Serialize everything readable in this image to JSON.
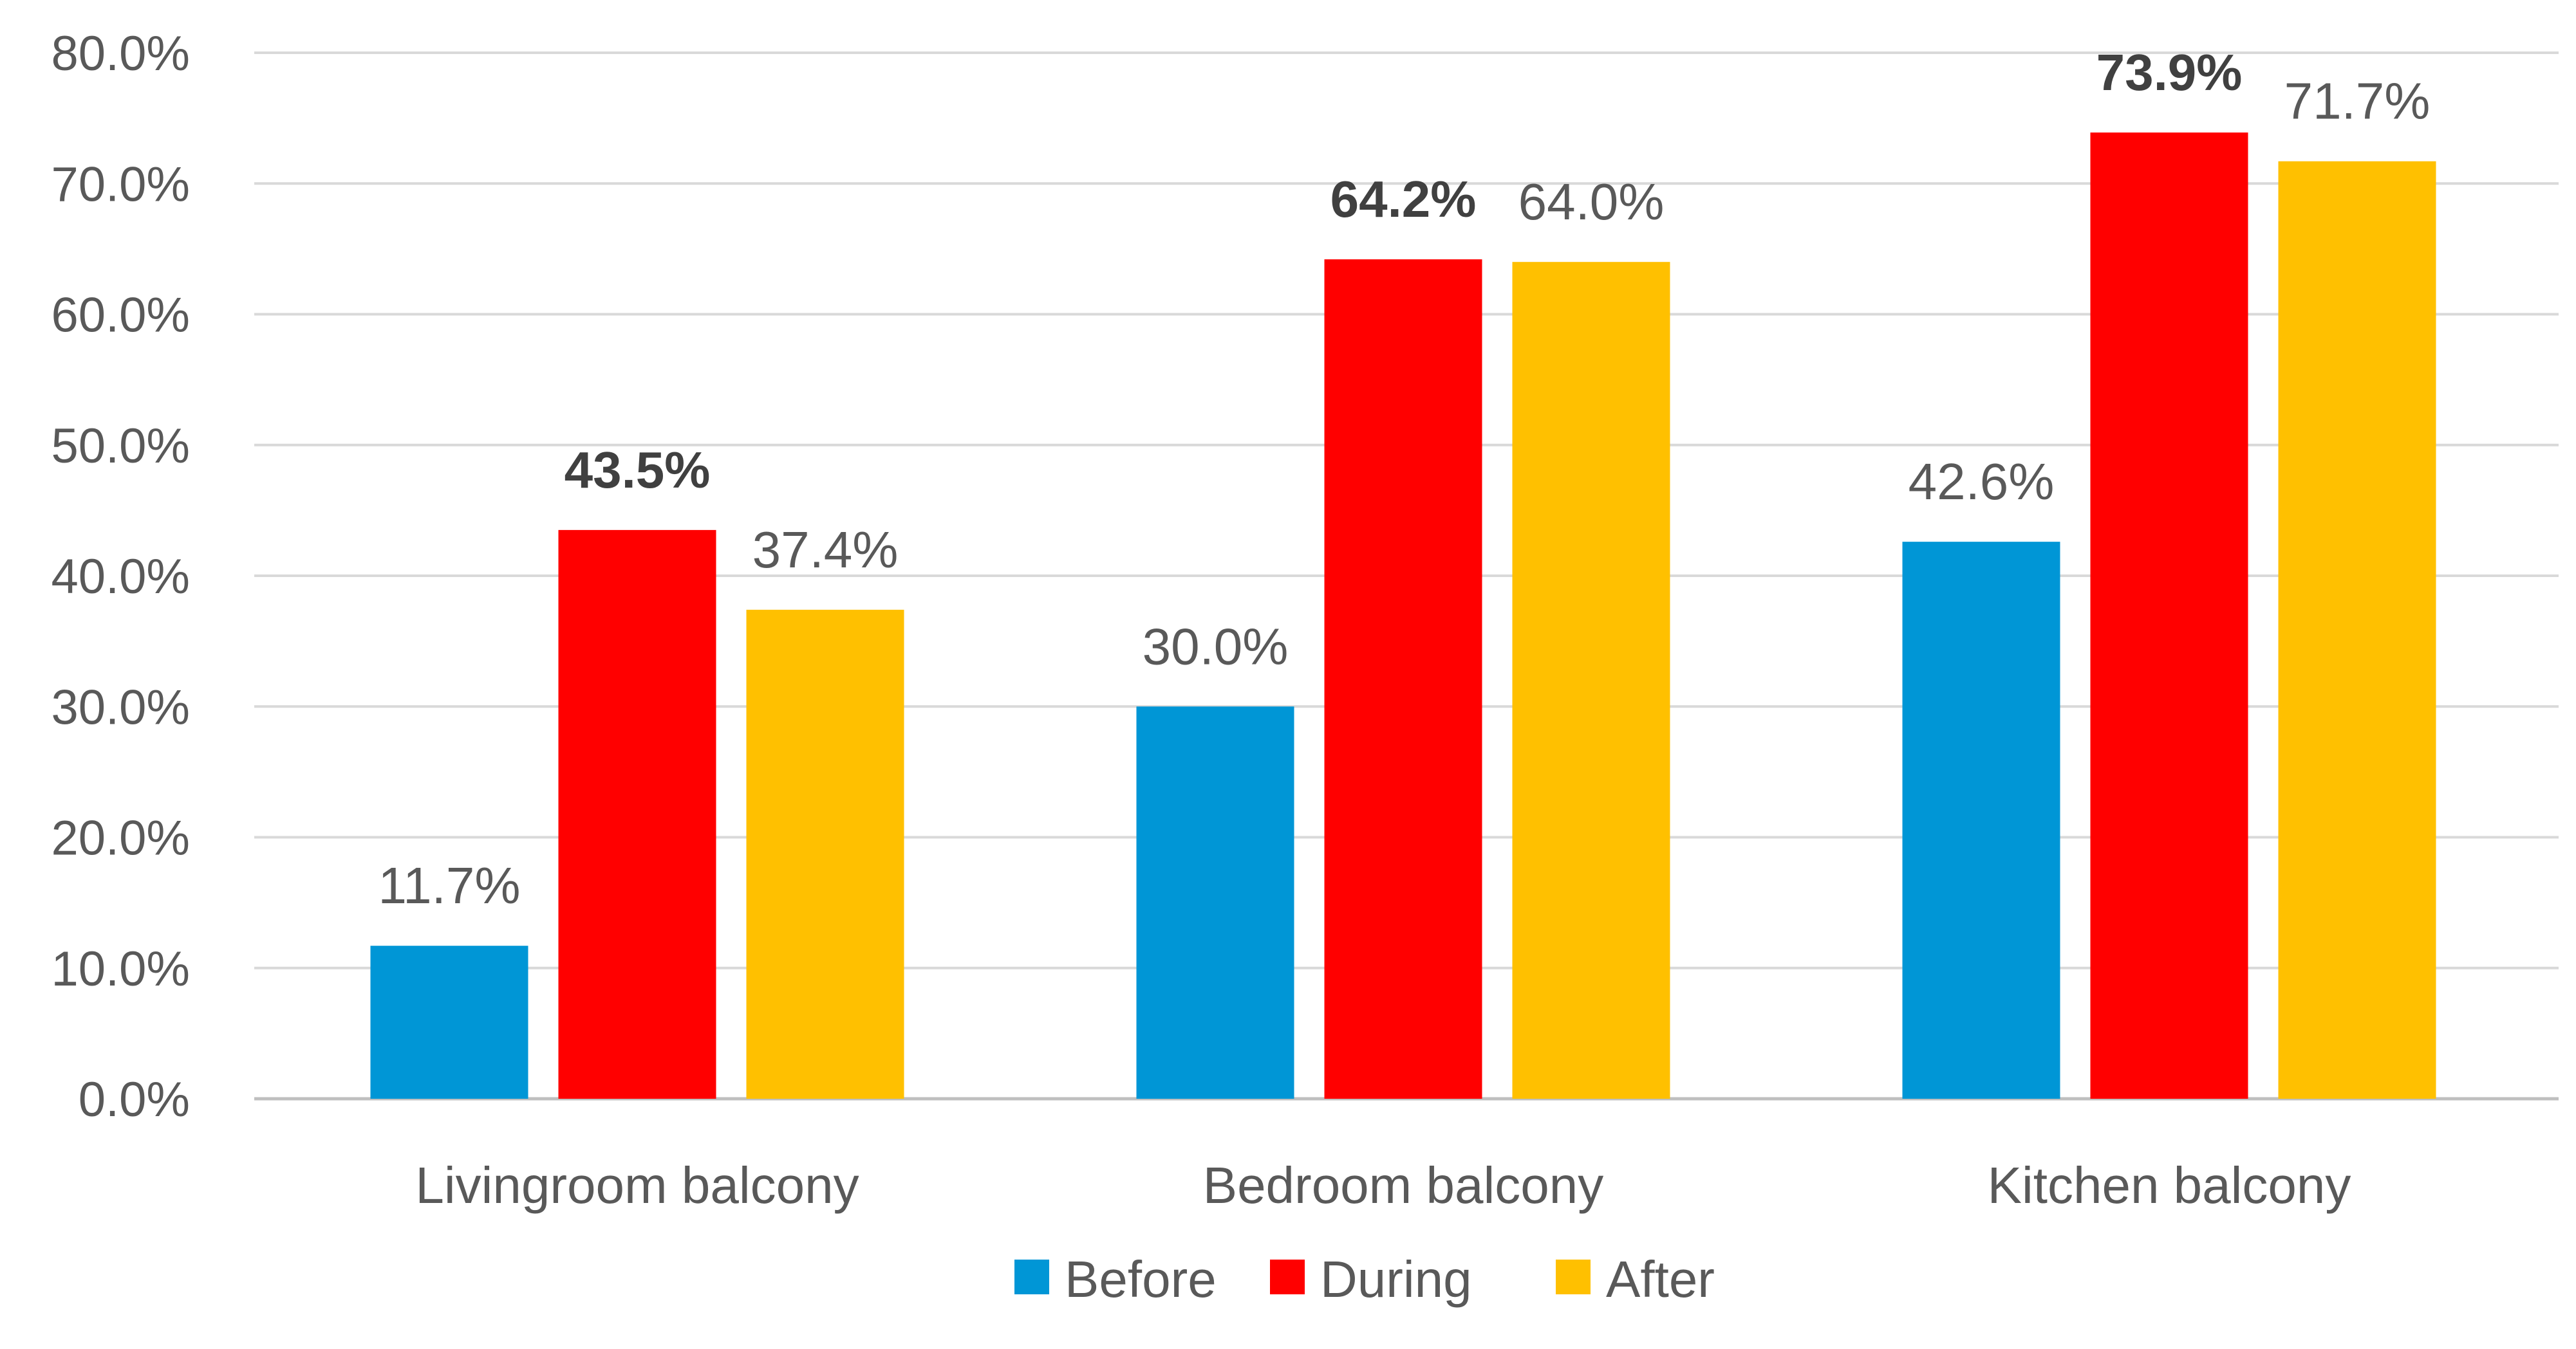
{
  "chart_data": {
    "type": "bar",
    "title": "",
    "xlabel": "",
    "ylabel": "",
    "categories": [
      "Livingroom balcony",
      "Bedroom balcony",
      "Kitchen balcony"
    ],
    "series": [
      {
        "name": "Before",
        "color": "#0096d6",
        "values": [
          11.7,
          30.0,
          42.6
        ],
        "labels": [
          "11.7%",
          "30.0%",
          "42.6%"
        ]
      },
      {
        "name": "During",
        "color": "#ff0000",
        "values": [
          43.5,
          64.2,
          73.9
        ],
        "labels": [
          "43.5%",
          "64.2%",
          "73.9%"
        ],
        "label_style": "bold"
      },
      {
        "name": "After",
        "color": "#ffc000",
        "values": [
          37.4,
          64.0,
          71.7
        ],
        "labels": [
          "37.4%",
          "64.0%",
          "71.7%"
        ]
      }
    ],
    "ylim": [
      0,
      80
    ],
    "yticks": [
      0,
      10,
      20,
      30,
      40,
      50,
      60,
      70,
      80
    ],
    "ytick_labels": [
      "0.0%",
      "10.0%",
      "20.0%",
      "30.0%",
      "40.0%",
      "50.0%",
      "60.0%",
      "70.0%",
      "80.0%"
    ],
    "grid": true,
    "legend": "bottom-center"
  }
}
